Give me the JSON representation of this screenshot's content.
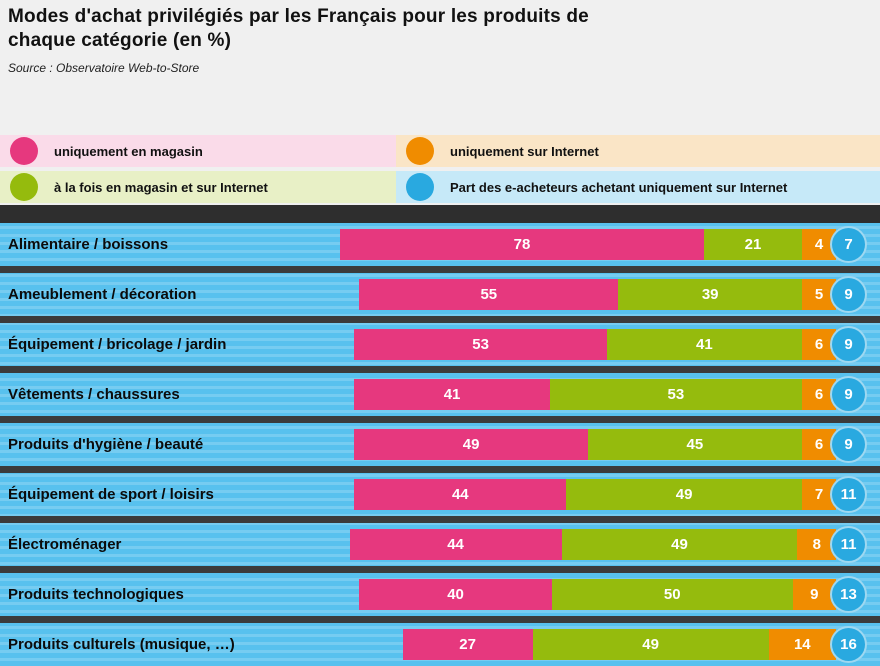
{
  "header": {
    "title_line1": "Modes d'achat privilégiés par les Français pour les produits de",
    "title_line2": "chaque catégorie (en %)",
    "source": "Source : Observatoire Web-to-Store"
  },
  "legend": {
    "items": [
      {
        "id": "store-only",
        "label": "uniquement en magasin",
        "color": "#E6387E",
        "tint": "#FADBE9"
      },
      {
        "id": "online-only",
        "label": "uniquement sur Internet",
        "color": "#F08C00",
        "tint": "#FAE5C6"
      },
      {
        "id": "both",
        "label": "à la fois en magasin et sur Internet",
        "color": "#95BB0D",
        "tint": "#E8F0C6"
      },
      {
        "id": "online-share",
        "label": "Part des e-acheteurs achetant uniquement sur Internet",
        "color": "#29A9E0",
        "tint": "#C6E9F8"
      }
    ]
  },
  "chart_data": {
    "type": "bar",
    "orientation": "horizontal",
    "stacked": true,
    "unit": "%",
    "value_labels": "inside segments",
    "legend_position": "top",
    "categories": [
      "Alimentaire / boissons",
      "Ameublement / décoration",
      "Équipement / bricolage / jardin",
      "Vêtements / chaussures",
      "Produits d'hygiène / beauté",
      "Équipement de sport / loisirs",
      "Électroménager",
      "Produits technologiques",
      "Produits culturels (musique, …)"
    ],
    "series": [
      {
        "name": "uniquement en magasin",
        "color": "#E6387E",
        "values": [
          78,
          55,
          53,
          41,
          49,
          44,
          44,
          40,
          27
        ]
      },
      {
        "name": "à la fois en magasin et sur Internet",
        "color": "#95BB0D",
        "values": [
          21,
          39,
          41,
          53,
          45,
          49,
          49,
          50,
          49
        ]
      },
      {
        "name": "uniquement sur Internet",
        "color": "#F08C00",
        "values": [
          4,
          5,
          6,
          6,
          6,
          7,
          8,
          9,
          14
        ]
      },
      {
        "name": "Part des e-acheteurs achetant uniquement sur Internet",
        "color": "#29A9E0",
        "style": "circle-badge",
        "values": [
          7,
          9,
          9,
          9,
          9,
          11,
          11,
          13,
          16
        ]
      }
    ]
  },
  "colors": {
    "chart_background": "#58C1EE",
    "header_background": "#F0F0F0",
    "row_separator": "#3B3B3B",
    "label_text": "#0B0B0B",
    "bar_value_text": "#FFFFFF"
  }
}
